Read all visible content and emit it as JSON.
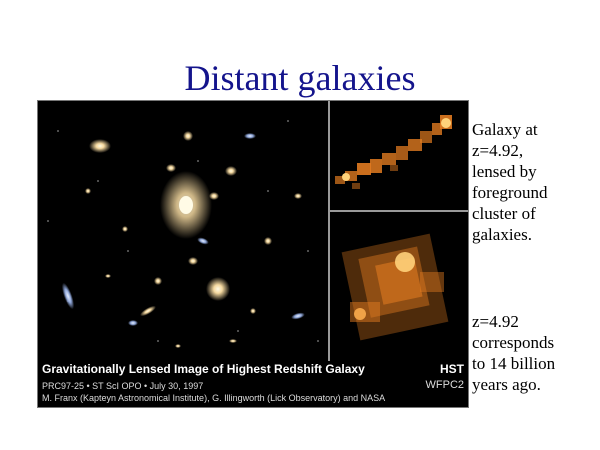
{
  "slide": {
    "title": "Distant galaxies",
    "side_text_1": [
      "Galaxy at",
      "z=4.92,",
      "lensed by",
      "foreground",
      "cluster of",
      "galaxies."
    ],
    "side_text_2": [
      "z=4.92",
      "corresponds",
      "to 14 billion",
      "years ago."
    ]
  },
  "image": {
    "caption": "Gravitationally Lensed Image of Highest Redshift Galaxy",
    "credit_line_1": "PRC97-25 • ST ScI OPO • July 30, 1997",
    "credit_line_2": "M. Franx (Kapteyn Astronomical Institute), G. Illingworth (Lick Observatory) and NASA",
    "instrument_1": "HST",
    "instrument_2": "WFPC2"
  },
  "colors": {
    "title": "#14148c",
    "panel_bg": "#000000",
    "galaxy_glow": "#f5d9a0",
    "lensed_arc": "#e07a20"
  }
}
